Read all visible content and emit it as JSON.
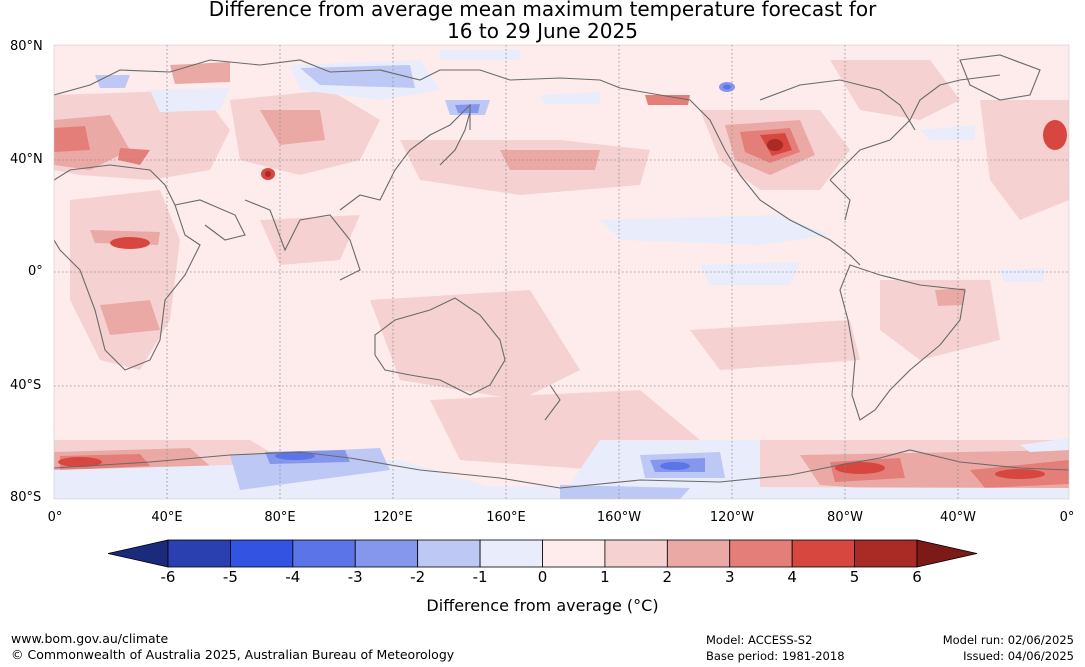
{
  "title": {
    "line1": "Difference from average mean maximum temperature forecast for",
    "line2": "16 to 29 June 2025"
  },
  "latitude_labels": [
    "80°N",
    "40°N",
    "0°",
    "40°S",
    "80°S"
  ],
  "longitude_labels": [
    "0°",
    "40°E",
    "80°E",
    "120°E",
    "160°E",
    "160°W",
    "120°W",
    "80°W",
    "40°W",
    "0°"
  ],
  "colorbar": {
    "ticks": [
      "-6",
      "-5",
      "-4",
      "-3",
      "-2",
      "-1",
      "0",
      "1",
      "2",
      "3",
      "4",
      "5",
      "6"
    ],
    "colors": [
      "#1b2a7a",
      "#2a40b0",
      "#3353e3",
      "#5b74e8",
      "#8597ec",
      "#bec8f4",
      "#e9edfb",
      "#fdeceb",
      "#f5d2d1",
      "#eba9a6",
      "#e47e79",
      "#d8473f",
      "#aa2a25",
      "#7b1a17"
    ],
    "title": "Difference from average (°C)"
  },
  "footer": {
    "left_line1": "www.bom.gov.au/climate",
    "left_line2": "© Commonwealth of Australia 2025, Australian Bureau of Meteorology",
    "model": "Model: ACCESS-S2",
    "base_period": "Base period: 1981-2018",
    "model_run": "Model run: 02/06/2025",
    "issued": "Issued: 04/06/2025"
  }
}
